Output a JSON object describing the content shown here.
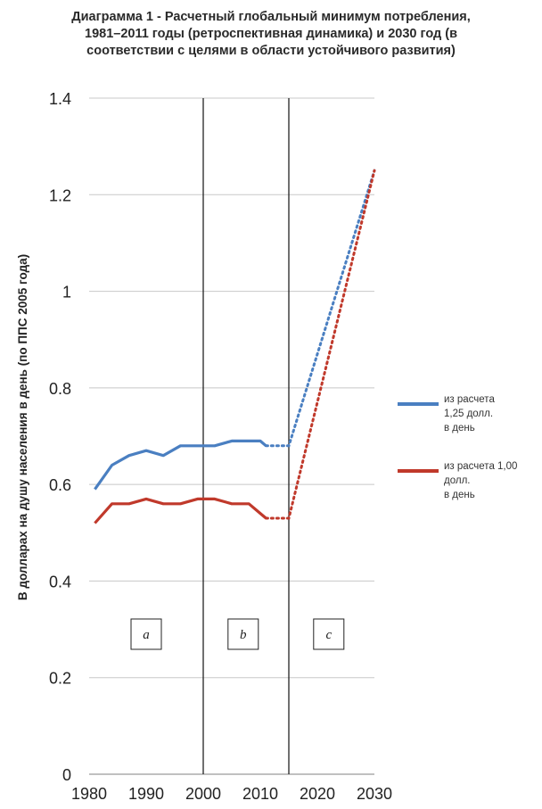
{
  "chart_data": {
    "type": "line",
    "title_lines": [
      "Диаграмма 1 - Расчетный глобальный минимум потребления,",
      "1981–2011 годы (ретроспективная динамика) и 2030 год (в",
      "соответствии с целями в области устойчивого развития)"
    ],
    "ylabel": "В долларах на душу населения в день (по ППС 2005 года)",
    "xlabel": "",
    "xlim": [
      1980,
      2030
    ],
    "ylim": [
      0,
      1.4
    ],
    "x_ticks": [
      "1980",
      "1990",
      "2000",
      "2010",
      "2020",
      "2030"
    ],
    "y_ticks": [
      "0",
      "0.2",
      "0.4",
      "0.6",
      "0.8",
      "1",
      "1.2",
      "1.4"
    ],
    "grid": true,
    "legend_position": "right",
    "period_lines_x": [
      2000,
      2015
    ],
    "period_labels": [
      {
        "text": "a",
        "x": 1990
      },
      {
        "text": "b",
        "x": 2007
      },
      {
        "text": "c",
        "x": 2022
      }
    ],
    "series": [
      {
        "name_lines": [
          "из расчета",
          "1,25 долл.",
          "в день"
        ],
        "color": "#4a7fc1",
        "x": [
          1981,
          1984,
          1987,
          1990,
          1993,
          1996,
          1999,
          2002,
          2005,
          2008,
          2010,
          2011
        ],
        "values": [
          0.59,
          0.64,
          0.66,
          0.67,
          0.66,
          0.68,
          0.68,
          0.68,
          0.69,
          0.69,
          0.69,
          0.68
        ],
        "projection": {
          "x": [
            2011,
            2015,
            2030
          ],
          "values": [
            0.68,
            0.68,
            1.25
          ]
        }
      },
      {
        "name_lines": [
          "из расчета 1,00",
          "долл.",
          "в день"
        ],
        "color": "#c0392b",
        "x": [
          1981,
          1984,
          1987,
          1990,
          1993,
          1996,
          1999,
          2002,
          2005,
          2008,
          2010,
          2011
        ],
        "values": [
          0.52,
          0.56,
          0.56,
          0.57,
          0.56,
          0.56,
          0.57,
          0.57,
          0.56,
          0.56,
          0.54,
          0.53
        ],
        "projection": {
          "x": [
            2011,
            2015,
            2030
          ],
          "values": [
            0.53,
            0.53,
            1.25
          ]
        }
      }
    ]
  }
}
